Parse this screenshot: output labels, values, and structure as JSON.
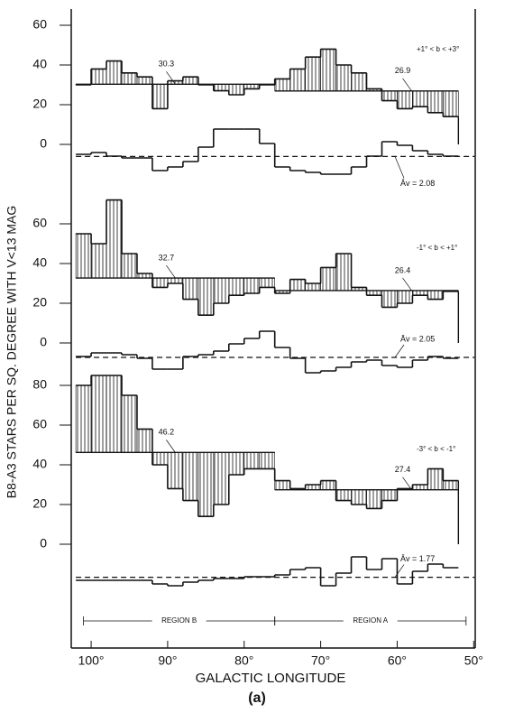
{
  "chart_data": {
    "type": "step",
    "ylabel": "B8-A3 STARS PER SQ. DEGREE WITH V<13 MAG",
    "xlabel": "GALACTIC LONGITUDE",
    "caption": "(a)",
    "xlim": [
      102.6,
      49.8
    ],
    "xticks": [
      {
        "value": 100,
        "label": "100°"
      },
      {
        "value": 90,
        "label": "90°"
      },
      {
        "value": 80,
        "label": "80°"
      },
      {
        "value": 70,
        "label": "70°"
      },
      {
        "value": 60,
        "label": "60°"
      },
      {
        "value": 50,
        "label": "50°"
      }
    ],
    "bins": [
      102,
      100,
      98,
      96,
      94,
      92,
      90,
      88,
      86,
      84,
      82,
      80,
      78,
      76,
      74,
      72,
      70,
      68,
      66,
      64,
      62,
      60,
      58,
      56,
      54,
      52
    ],
    "regions": [
      {
        "label": "REGION B",
        "from": 101,
        "to": 76
      },
      {
        "label": "REGION A",
        "from": 76,
        "to": 51
      }
    ],
    "panels": [
      {
        "label": "+1° < b < +3°",
        "ylim": [
          0,
          60
        ],
        "yticks": [
          0,
          20,
          40,
          60
        ],
        "values": [
          30,
          38,
          42,
          36,
          34,
          18,
          32,
          34,
          30,
          27,
          25,
          28,
          30,
          33,
          38,
          44,
          48,
          40,
          36,
          28,
          22,
          18,
          19,
          16,
          14
        ],
        "means": [
          {
            "value": 30.3,
            "from": 102,
            "to": 76
          },
          {
            "value": 26.9,
            "from": 76,
            "to": 52
          }
        ],
        "av_lim": [
          0,
          4
        ],
        "av_mean": 2.08,
        "av_mean_label": "Āv = 2.08",
        "av_values": [
          2.2,
          2.3,
          2.1,
          2.0,
          2.0,
          1.3,
          1.5,
          1.8,
          2.6,
          3.6,
          3.6,
          3.6,
          2.8,
          1.5,
          1.3,
          1.2,
          1.1,
          1.1,
          1.5,
          2.1,
          2.9,
          2.7,
          2.4,
          2.2,
          2.1
        ]
      },
      {
        "label": "-1° < b < +1°",
        "ylim": [
          0,
          60
        ],
        "yticks": [
          0,
          20,
          40,
          60
        ],
        "values": [
          55,
          50,
          72,
          45,
          35,
          28,
          30,
          22,
          14,
          20,
          24,
          25,
          28,
          25,
          32,
          30,
          38,
          45,
          28,
          24,
          18,
          20,
          24,
          22,
          26
        ],
        "means": [
          {
            "value": 32.7,
            "from": 102,
            "to": 76
          },
          {
            "value": 26.4,
            "from": 76,
            "to": 52
          }
        ],
        "av_lim": [
          0,
          4
        ],
        "av_mean": 2.05,
        "av_mean_label": "Āv = 2.05",
        "av_values": [
          2.1,
          2.3,
          2.3,
          2.2,
          2.0,
          1.4,
          1.4,
          2.1,
          2.2,
          2.4,
          2.8,
          3.1,
          3.5,
          2.6,
          2.0,
          1.2,
          1.3,
          1.5,
          1.8,
          1.9,
          1.6,
          1.5,
          1.9,
          2.1,
          2.0
        ]
      },
      {
        "label": "-3° < b < -1°",
        "ylim": [
          0,
          80
        ],
        "yticks": [
          0,
          20,
          40,
          60,
          80
        ],
        "values": [
          80,
          85,
          85,
          75,
          58,
          40,
          28,
          22,
          14,
          20,
          35,
          38,
          38,
          32,
          28,
          30,
          32,
          22,
          20,
          18,
          22,
          28,
          30,
          38,
          32
        ],
        "means": [
          {
            "value": 46.2,
            "from": 102,
            "to": 76
          },
          {
            "value": 27.4,
            "from": 76,
            "to": 52
          }
        ],
        "av_lim": [
          0,
          4
        ],
        "av_mean": 1.77,
        "av_mean_label": "Āv = 1.77",
        "av_values": [
          1.6,
          1.6,
          1.6,
          1.6,
          1.6,
          1.4,
          1.3,
          1.5,
          1.6,
          1.7,
          1.7,
          1.8,
          1.8,
          1.9,
          2.2,
          2.3,
          1.3,
          2.0,
          2.9,
          2.2,
          2.8,
          1.4,
          2.1,
          2.5,
          2.3
        ]
      }
    ]
  }
}
